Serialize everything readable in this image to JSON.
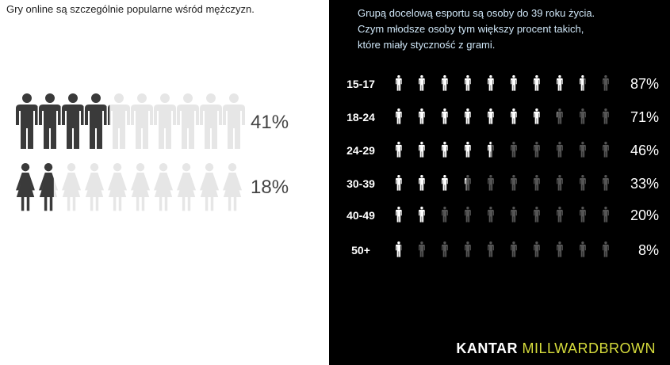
{
  "left_title": "Gry online są szczególnie popularne wśród mężczyzn.",
  "right_caption": [
    "Grupą docelową esportu są osoby do 39 roku życia.",
    "Czym młodsze osoby tym większy procent takich,",
    "które miały styczność z grami."
  ],
  "logo": {
    "part1": "KANTAR",
    "part2": "MILLWARDBROWN"
  },
  "colors": {
    "male_filled": "#3a3a3a",
    "female_filled": "#3a3a3a",
    "empty_left": "#e6e6e6",
    "age_filled": "#ffffff",
    "age_empty": "#555555",
    "label_left": "#444444",
    "text_right": "#ffffff"
  },
  "chart_data": [
    {
      "type": "pictogram",
      "icons_per_row": 10,
      "series": [
        {
          "name": "men",
          "value": 41,
          "label": "41%",
          "icon": "male-person-icon"
        },
        {
          "name": "women",
          "value": 18,
          "label": "18%",
          "icon": "female-person-icon"
        }
      ]
    },
    {
      "type": "pictogram",
      "icons_per_row": 10,
      "categories": [
        "15-17",
        "18-24",
        "24-29",
        "30-39",
        "40-49",
        "50+"
      ],
      "values": [
        87,
        71,
        46,
        33,
        20,
        8
      ],
      "labels": [
        "87%",
        "71%",
        "46%",
        "33%",
        "20%",
        "8%"
      ],
      "icon": "person-icon"
    }
  ]
}
